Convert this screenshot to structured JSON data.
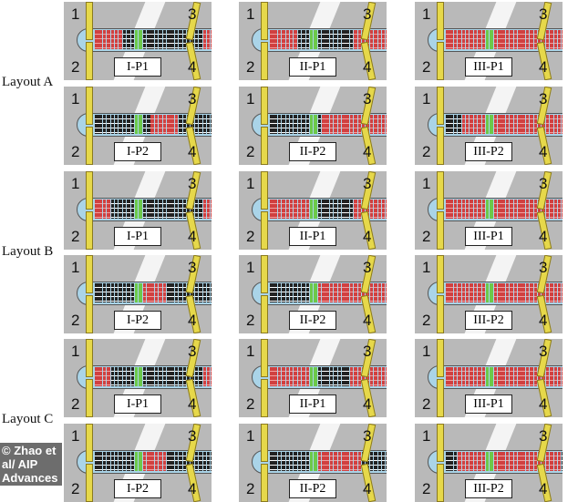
{
  "layouts": [
    {
      "label": "Layout A",
      "rows": [
        [
          {
            "label": "I-P1",
            "red": [
              [
                0,
                6
              ],
              [
                27,
                29
              ]
            ]
          },
          {
            "label": "II-P1",
            "red": [
              [
                0,
                6
              ],
              [
                21,
                29
              ]
            ]
          },
          {
            "label": "III-P1",
            "red": [
              [
                0,
                9
              ],
              [
                12,
                29
              ]
            ]
          }
        ],
        [
          {
            "label": "I-P2",
            "red": [
              [
                14,
                20
              ]
            ]
          },
          {
            "label": "II-P2",
            "red": [
              [
                13,
                29
              ]
            ]
          },
          {
            "label": "III-P2",
            "red": [
              [
                4,
                29
              ]
            ]
          }
        ]
      ]
    },
    {
      "label": "Layout B",
      "rows": [
        [
          {
            "label": "I-P1",
            "red": [
              [
                0,
                3
              ],
              [
                27,
                29
              ]
            ]
          },
          {
            "label": "II-P1",
            "red": [
              [
                0,
                9
              ],
              [
                21,
                29
              ]
            ]
          },
          {
            "label": "III-P1",
            "red": [
              [
                0,
                9
              ],
              [
                12,
                29
              ]
            ]
          }
        ],
        [
          {
            "label": "I-P2",
            "red": [
              [
                12,
                17
              ]
            ]
          },
          {
            "label": "II-P2",
            "red": [
              [
                12,
                29
              ]
            ]
          },
          {
            "label": "III-P2",
            "red": [
              [
                0,
                29
              ]
            ]
          }
        ]
      ]
    },
    {
      "label": "Layout C",
      "rows": [
        [
          {
            "label": "I-P1",
            "red": [
              [
                0,
                3
              ],
              [
                27,
                29
              ]
            ]
          },
          {
            "label": "II-P1",
            "red": [
              [
                0,
                9
              ],
              [
                20,
                29
              ]
            ]
          },
          {
            "label": "III-P1",
            "red": [
              [
                0,
                29
              ]
            ]
          }
        ],
        [
          {
            "label": "I-P2",
            "red": [
              [
                12,
                17
              ]
            ]
          },
          {
            "label": "II-P2",
            "red": [
              [
                10,
                22
              ]
            ]
          },
          {
            "label": "III-P2",
            "red": [
              [
                3,
                28
              ]
            ]
          }
        ]
      ]
    }
  ],
  "door_numbers": [
    "1",
    "2",
    "3",
    "4"
  ],
  "seat_rows": 30,
  "exit_rows": [
    10,
    11
  ],
  "colors": {
    "boarding": "#d04040",
    "waiting": "#222222",
    "exit": "#6cc94a",
    "bridge": "#e6d84a"
  },
  "credit": "© Zhao et al/ AIP Advances"
}
